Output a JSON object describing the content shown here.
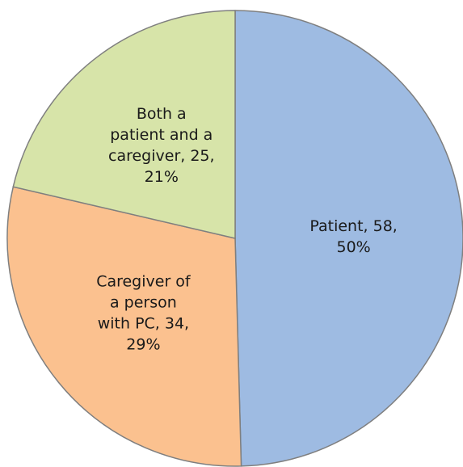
{
  "chart_data": {
    "type": "pie",
    "values": [
      58,
      34,
      25
    ],
    "value_labels": [
      [
        "Patient, 58,",
        "50%"
      ],
      [
        "Caregiver of",
        "a person",
        "with PC, 34,",
        "29%"
      ],
      [
        "Both a",
        "patient and a",
        "caregiver, 25,",
        "21%"
      ]
    ],
    "colors": [
      "#9ebbe2",
      "#fbc18f",
      "#d7e4a9"
    ],
    "start_angle": 0,
    "direction": "clockwise"
  }
}
